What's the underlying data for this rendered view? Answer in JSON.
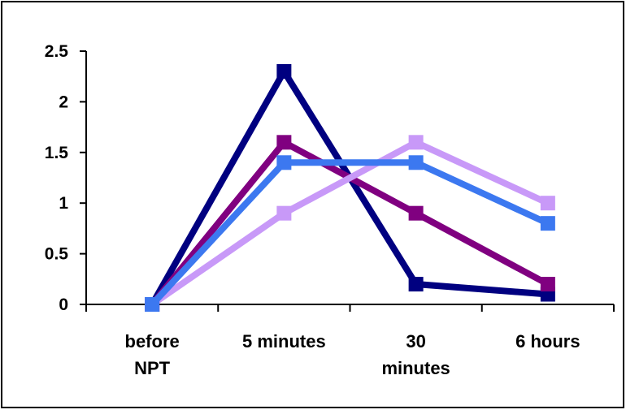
{
  "chart_data": {
    "type": "line",
    "categories": [
      [
        "before",
        "NPT"
      ],
      [
        "5 minutes"
      ],
      [
        "30",
        "minutes"
      ],
      [
        "6 hours"
      ]
    ],
    "ylim": [
      0,
      2.5
    ],
    "yticks": [
      "0",
      "0.5",
      "1",
      "1.5",
      "2",
      "2.5"
    ],
    "grid": false,
    "legend": "none",
    "series": [
      {
        "color": "#000080",
        "values": [
          0,
          2.3,
          0.2,
          0.1
        ]
      },
      {
        "color": "#800080",
        "values": [
          0,
          1.6,
          0.9,
          0.2
        ]
      },
      {
        "color": "#C899F8",
        "values": [
          0,
          0.9,
          1.6,
          1.0
        ]
      },
      {
        "color": "#3C78F0",
        "values": [
          0,
          1.4,
          1.4,
          0.8
        ]
      }
    ]
  }
}
